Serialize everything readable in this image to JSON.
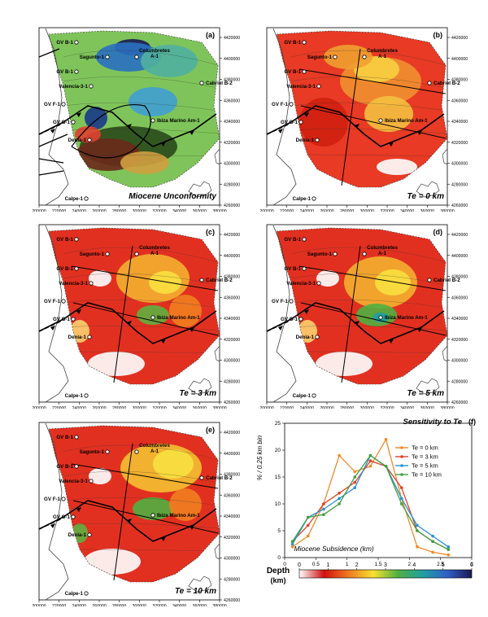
{
  "panels": [
    {
      "letter": "(a)",
      "caption": "Miocene Unconformity",
      "italic_caption": true
    },
    {
      "letter": "(b)",
      "caption": "Te = 0 km",
      "italic_caption": true
    },
    {
      "letter": "(c)",
      "caption": "Te = 3 km",
      "italic_caption": true
    },
    {
      "letter": "(d)",
      "caption": "Te = 5 km",
      "italic_caption": true
    },
    {
      "letter": "(e)",
      "caption": "Te = 10 km",
      "italic_caption": true
    }
  ],
  "wells": [
    "GV B-1",
    "Sagunto-1",
    "Columbretes A-1",
    "GV B-1",
    "Valencia-3-1",
    "Cabriel B-2",
    "GV F-1",
    "GV G-1",
    "Ibiza Marino Am-1",
    "Denia-1",
    "Calpe-1"
  ],
  "x_ticks": [
    "200000",
    "220000",
    "240000",
    "260000",
    "280000",
    "300000",
    "320000",
    "340000",
    "360000",
    "380000"
  ],
  "y_ticks": [
    "4420000",
    "4400000",
    "4380000",
    "4360000",
    "4340000",
    "4320000",
    "4300000",
    "4280000",
    "4260000"
  ],
  "legend": {
    "title": "Depth",
    "unit": "(km)",
    "ticks": [
      "0",
      "1",
      "2",
      "3",
      "4",
      "5",
      "6"
    ],
    "colors": [
      "#ffffff",
      "#d01010",
      "#f07a20",
      "#f8e030",
      "#50b040",
      "#20a0a0",
      "#3060c8",
      "#1a1a50"
    ]
  },
  "chart_data": {
    "type": "line",
    "title": "Sensitivity to Te",
    "panel_letter": "(f)",
    "xlabel": "Miocene Subsidence (km)",
    "ylabel": "% / 0.25 km bin",
    "xlim": [
      0,
      3
    ],
    "ylim": [
      0,
      25
    ],
    "x_ticks": [
      "0",
      "0.5",
      "1",
      "1.5",
      "2",
      "2.5",
      "3"
    ],
    "y_ticks": [
      "0",
      "5",
      "10",
      "15",
      "20",
      "25"
    ],
    "x": [
      0.125,
      0.375,
      0.625,
      0.875,
      1.125,
      1.375,
      1.625,
      1.875,
      2.125,
      2.375,
      2.625
    ],
    "series": [
      {
        "name": "Te = 0 km",
        "color": "#f08a2a",
        "values": [
          2,
          4,
          10,
          19,
          16,
          17,
          22,
          11,
          2,
          1,
          0.5
        ]
      },
      {
        "name": "Te = 3 km",
        "color": "#e0402a",
        "values": [
          3,
          6,
          10,
          12,
          14,
          18,
          17,
          13,
          5,
          3,
          1.5
        ]
      },
      {
        "name": "Te = 5 km",
        "color": "#2a90d0",
        "values": [
          2.5,
          7.5,
          9,
          11,
          13,
          19,
          17,
          11,
          6,
          4,
          2
        ]
      },
      {
        "name": "Te = 10 km",
        "color": "#40a040",
        "values": [
          3,
          7.5,
          8,
          10,
          15,
          19,
          17,
          10,
          5,
          3,
          1.5
        ]
      }
    ]
  }
}
